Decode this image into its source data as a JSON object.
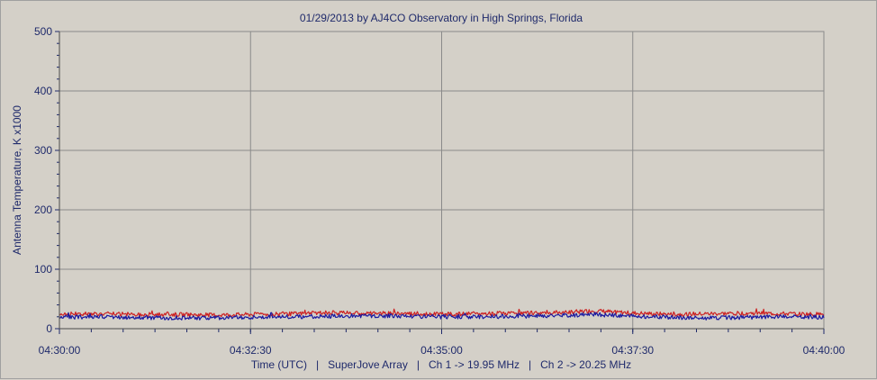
{
  "colors": {
    "background": "#d4d0c8",
    "plot_background": "#d4d0c8",
    "grid": "#8a8a8a",
    "axis_text": "#1f2a6b",
    "series_ch1": "#cc2222",
    "series_ch2": "#1a1aa0"
  },
  "chart_data": {
    "type": "line",
    "title": "01/29/2013  by  AJ4CO Observatory  in  High Springs, Florida",
    "xlabel": "Time (UTC)   |   SuperJove Array   |   Ch 1 -> 19.95 MHz   |   Ch 2 -> 20.25 MHz",
    "ylabel": "Antenna Temperature, K x1000",
    "x_tick_labels": [
      "04:30:00",
      "04:32:30",
      "04:35:00",
      "04:37:30",
      "04:40:00"
    ],
    "y_ticks": [
      0,
      100,
      200,
      300,
      400,
      500
    ],
    "xlim_seconds_of_window": [
      0,
      600
    ],
    "ylim": [
      0,
      500
    ],
    "grid": true,
    "series": [
      {
        "color": "#cc2222",
        "x": [
          0,
          30,
          60,
          90,
          120,
          150,
          180,
          210,
          240,
          270,
          300,
          330,
          360,
          390,
          420,
          450,
          480,
          510,
          540,
          570,
          600
        ],
        "y": [
          25,
          25,
          24,
          24,
          23,
          24,
          25,
          27,
          26,
          26,
          24,
          25,
          26,
          27,
          30,
          26,
          24,
          25,
          26,
          25,
          24
        ]
      },
      {
        "color": "#1a1aa0",
        "x": [
          0,
          30,
          60,
          90,
          120,
          150,
          180,
          210,
          240,
          270,
          300,
          330,
          360,
          390,
          420,
          450,
          480,
          510,
          540,
          570,
          600
        ],
        "y": [
          19,
          20,
          19,
          18,
          18,
          19,
          20,
          21,
          22,
          21,
          20,
          20,
          21,
          22,
          24,
          21,
          19,
          18,
          19,
          20,
          19
        ]
      }
    ]
  }
}
